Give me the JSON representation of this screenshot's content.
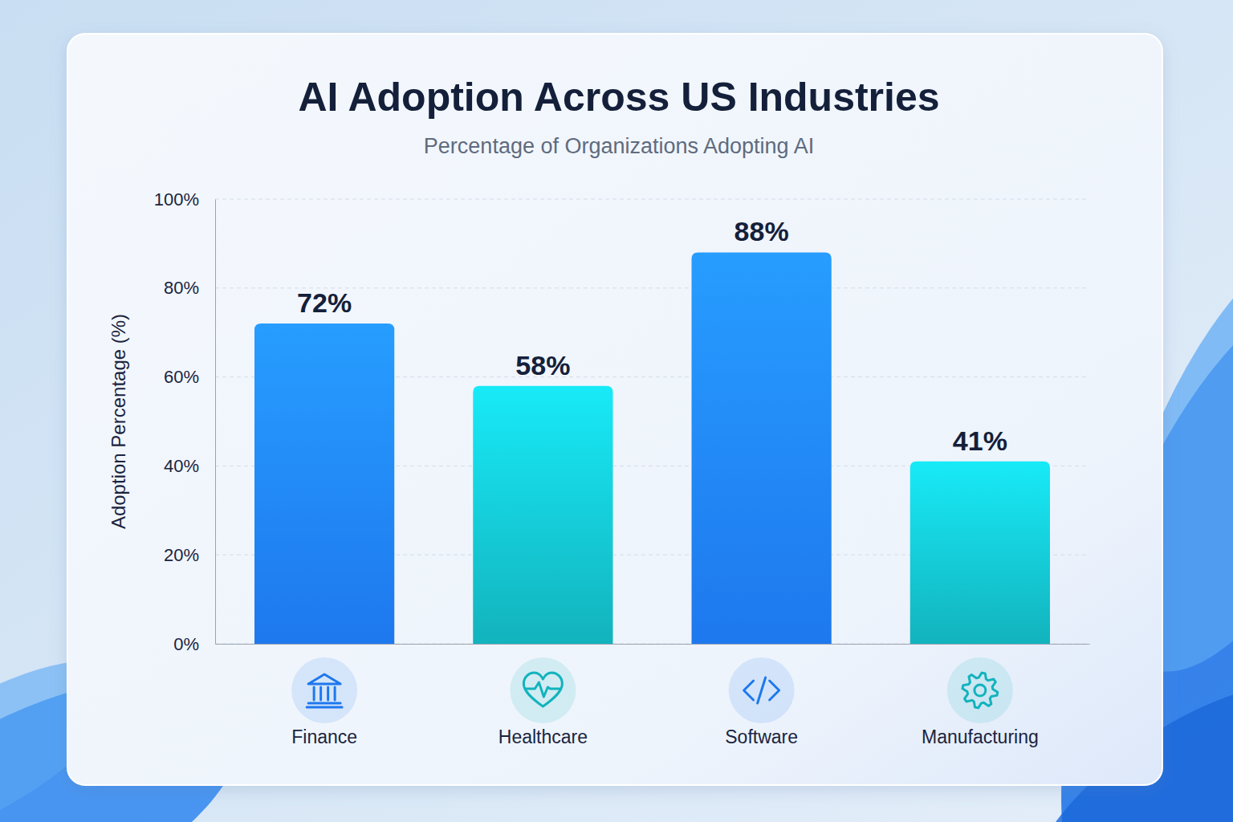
{
  "chart_data": {
    "type": "bar",
    "title": "AI Adoption Across US Industries",
    "subtitle": "Percentage of Organizations Adopting AI",
    "y_label": "Adoption Percentage (%)",
    "categories": [
      "Finance",
      "Healthcare",
      "Software",
      "Manufacturing"
    ],
    "values": [
      72,
      58,
      88,
      41
    ],
    "value_labels": [
      "72%",
      "58%",
      "88%",
      "41%"
    ],
    "colors": [
      "#1e78ee",
      "#12b3bd",
      "#1e78ee",
      "#12b3bd"
    ],
    "ylim": [
      0,
      100
    ],
    "yticks": [
      {
        "value": 0,
        "label": "0%"
      },
      {
        "value": 20,
        "label": "20%"
      },
      {
        "value": 40,
        "label": "40%"
      },
      {
        "value": 60,
        "label": "60%"
      },
      {
        "value": 80,
        "label": "80%"
      },
      {
        "value": 100,
        "label": "100%"
      }
    ],
    "grid": true,
    "data_labels": true
  }
}
